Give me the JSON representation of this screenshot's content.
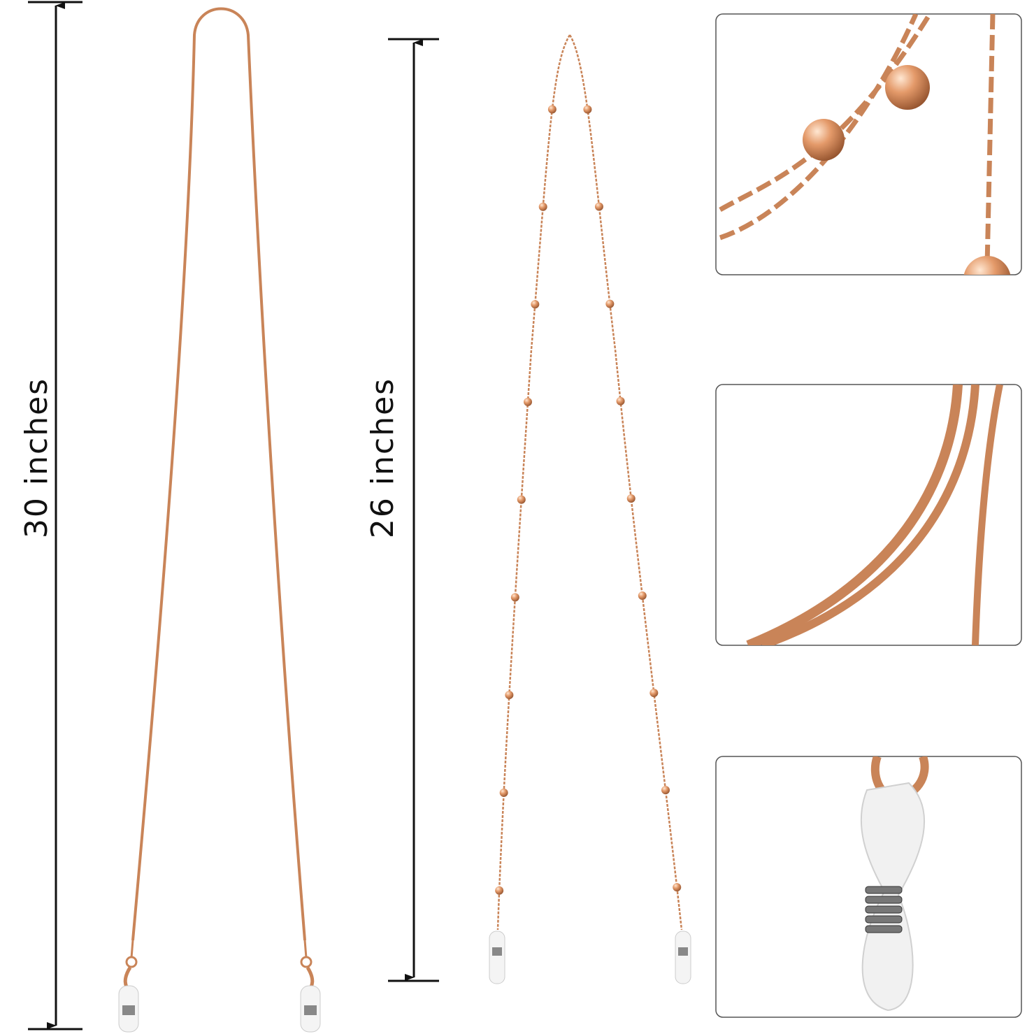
{
  "measurements": [
    {
      "label": "30 inches"
    },
    {
      "label": "26 inches"
    }
  ]
}
